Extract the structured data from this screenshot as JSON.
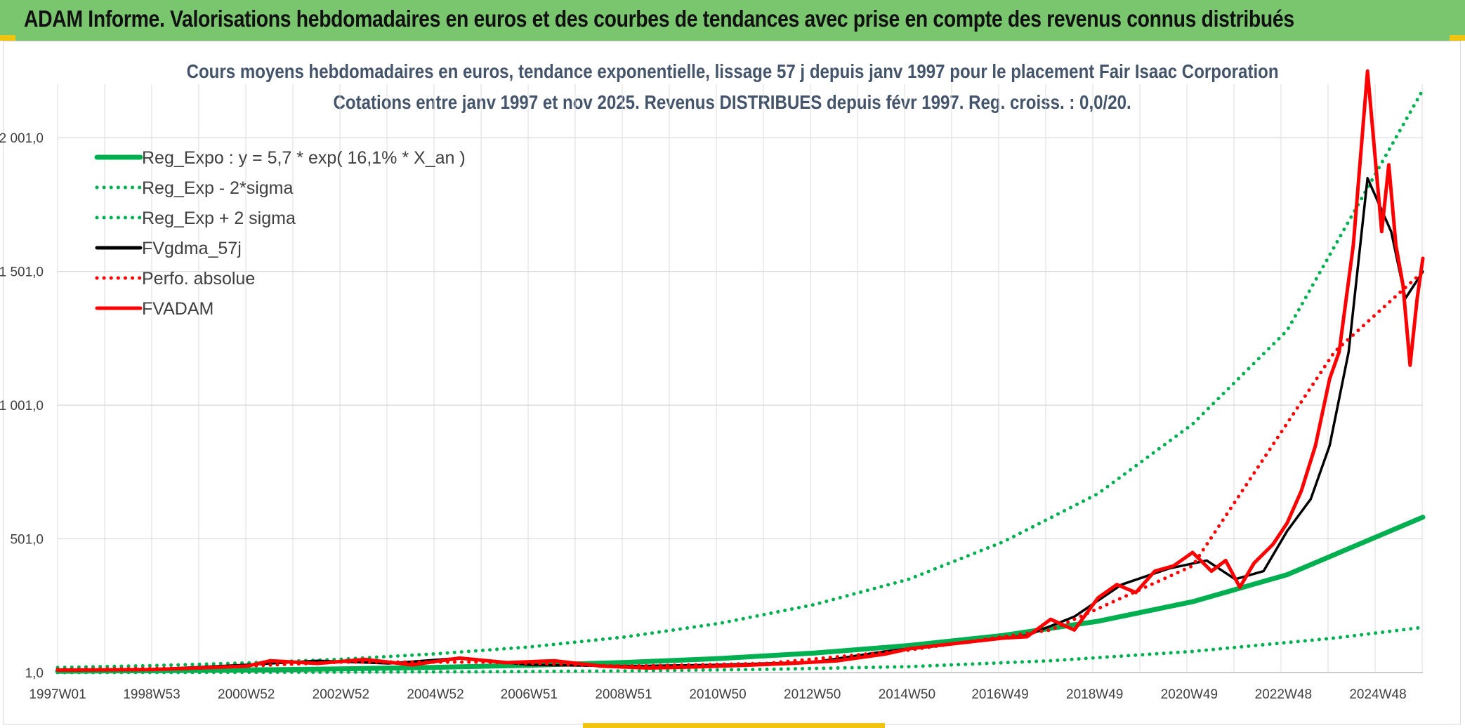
{
  "header": {
    "title": "ADAM Informe. Valorisations hebdomadaires en euros et des courbes de tendances avec prise en compte des revenus connus distribués"
  },
  "chart_data": {
    "type": "line",
    "title": "Cours moyens hebdomadaires en euros, tendance exponentielle, lissage 57 j depuis janv 1997 pour le placement Fair Isaac Corporation",
    "subtitle": "Cotations entre janv 1997 et nov 2025. Revenus DISTRIBUES depuis févr 1997. Reg. croiss. : 0,0/20.",
    "xlabel": "",
    "ylabel": "",
    "ylim": [
      1,
      2201
    ],
    "xlim": [
      1997.0,
      2025.87
    ],
    "grid": true,
    "legend_position": "top-left",
    "y_ticks": [
      1,
      501,
      1001,
      1501,
      2001
    ],
    "y_tick_labels": [
      "1,0",
      "501,0",
      "1 001,0",
      "1 501,0",
      "2 001,0"
    ],
    "x_ticks": [
      1997.0,
      1998.99,
      2000.99,
      2002.99,
      2004.99,
      2006.97,
      2008.97,
      2010.96,
      2012.96,
      2014.96,
      2016.93,
      2018.93,
      2020.93,
      2022.92,
      2024.92
    ],
    "x_tick_labels": [
      "1997W01",
      "1998W53",
      "2000W52",
      "2002W52",
      "2004W52",
      "2006W51",
      "2008W51",
      "2010W50",
      "2012W50",
      "2014W50",
      "2016W49",
      "2018W49",
      "2020W49",
      "2022W48",
      "2024W48"
    ],
    "series": [
      {
        "name": "Reg_Expo : y = 5,7 * exp( 16,1% *  X_an )",
        "color": "#00b050",
        "style": "solid",
        "x": [
          1997,
          1999,
          2001,
          2003,
          2005,
          2007,
          2009,
          2011,
          2013,
          2015,
          2017,
          2019,
          2021,
          2023,
          2025.87
        ],
        "y": [
          5.7,
          7.8,
          10.8,
          14.9,
          20.5,
          28.2,
          38.9,
          53.6,
          73.9,
          102,
          140,
          193,
          266,
          367,
          582
        ]
      },
      {
        "name": "Reg_Exp - 2*sigma",
        "color": "#00b050",
        "style": "dotted",
        "x": [
          1997,
          2000,
          2003,
          2006,
          2009,
          2012,
          2015,
          2018,
          2021,
          2024,
          2025.87
        ],
        "y": [
          1,
          1.5,
          2.5,
          4,
          7,
          13,
          23,
          45,
          80,
          130,
          170
        ]
      },
      {
        "name": "Reg_Exp + 2 sigma",
        "color": "#00b050",
        "style": "dotted",
        "x": [
          1997,
          1999,
          2001,
          2003,
          2005,
          2007,
          2009,
          2011,
          2013,
          2015,
          2017,
          2019,
          2021,
          2023,
          2025.87
        ],
        "y": [
          20,
          27,
          37,
          51,
          71,
          97,
          134,
          185,
          255,
          350,
          490,
          670,
          930,
          1280,
          2180
        ]
      },
      {
        "name": "FVgdma_57j",
        "color": "#000000",
        "style": "solid",
        "x": [
          1997,
          1999,
          2001,
          2002.5,
          2004,
          2005.5,
          2007,
          2009,
          2011,
          2013,
          2014.5,
          2016,
          2017.5,
          2018.5,
          2019.5,
          2020.5,
          2021.3,
          2021.9,
          2022.5,
          2023,
          2023.5,
          2023.9,
          2024.3,
          2024.7,
          2025.2,
          2025.5,
          2025.87
        ],
        "y": [
          12,
          13,
          30,
          45,
          35,
          55,
          30,
          25,
          30,
          40,
          80,
          110,
          140,
          210,
          330,
          390,
          420,
          350,
          380,
          530,
          650,
          850,
          1200,
          1850,
          1650,
          1400,
          1500
        ]
      },
      {
        "name": "Perfo. absolue",
        "color": "#ff0000",
        "style": "dotted",
        "x": [
          1997,
          2000,
          2003,
          2006,
          2009,
          2012,
          2015,
          2018,
          2021,
          2024,
          2025.87
        ],
        "y": [
          12,
          18,
          40,
          40,
          25,
          35,
          85,
          160,
          400,
          1200,
          1500
        ]
      },
      {
        "name": "FVADAM",
        "color": "#ff0000",
        "style": "solid",
        "x": [
          1997,
          1999,
          2001,
          2001.5,
          2002.5,
          2003.5,
          2004.5,
          2005.5,
          2006.5,
          2007.5,
          2008.5,
          2009.5,
          2010.5,
          2011.5,
          2012.5,
          2013.5,
          2014.5,
          2015,
          2016,
          2017,
          2017.5,
          2018,
          2018.5,
          2019,
          2019.4,
          2019.8,
          2020.2,
          2020.6,
          2021,
          2021.4,
          2021.7,
          2022,
          2022.3,
          2022.7,
          2023,
          2023.3,
          2023.6,
          2023.9,
          2024.1,
          2024.4,
          2024.7,
          2025.0,
          2025.15,
          2025.3,
          2025.45,
          2025.6,
          2025.75,
          2025.87
        ],
        "y": [
          10,
          12,
          25,
          45,
          35,
          50,
          30,
          55,
          38,
          45,
          25,
          18,
          22,
          28,
          35,
          45,
          70,
          90,
          110,
          130,
          135,
          200,
          160,
          280,
          330,
          300,
          380,
          400,
          450,
          380,
          420,
          320,
          410,
          480,
          560,
          680,
          850,
          1100,
          1200,
          1600,
          2250,
          1650,
          1900,
          1600,
          1450,
          1150,
          1400,
          1550
        ]
      }
    ]
  }
}
